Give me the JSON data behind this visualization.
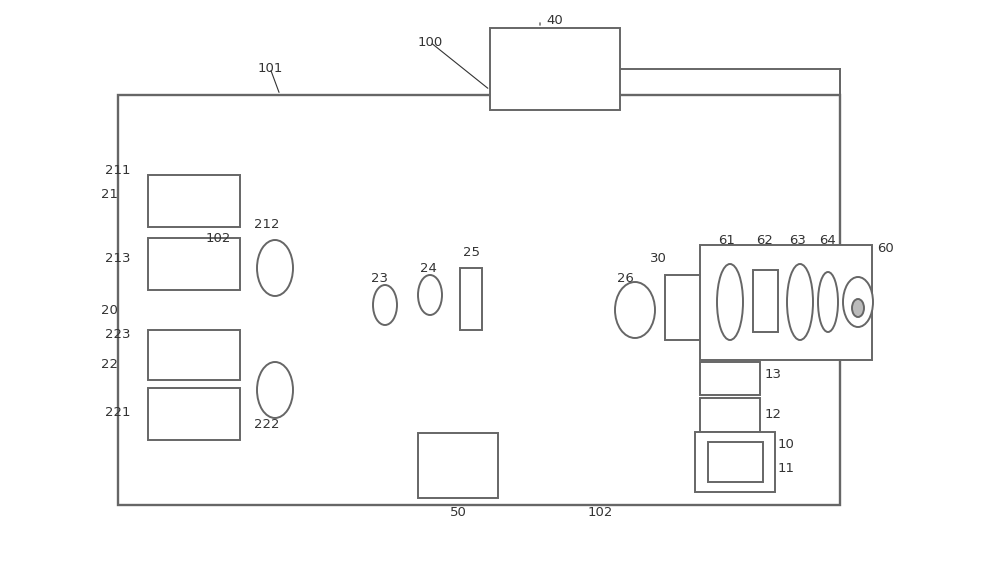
{
  "bg_color": "#ffffff",
  "lc": "#666666",
  "lw": 1.4,
  "fig_w": 10.0,
  "fig_h": 5.64,
  "dpi": 100,
  "label_color": "#333333",
  "label_fs": 9.5
}
